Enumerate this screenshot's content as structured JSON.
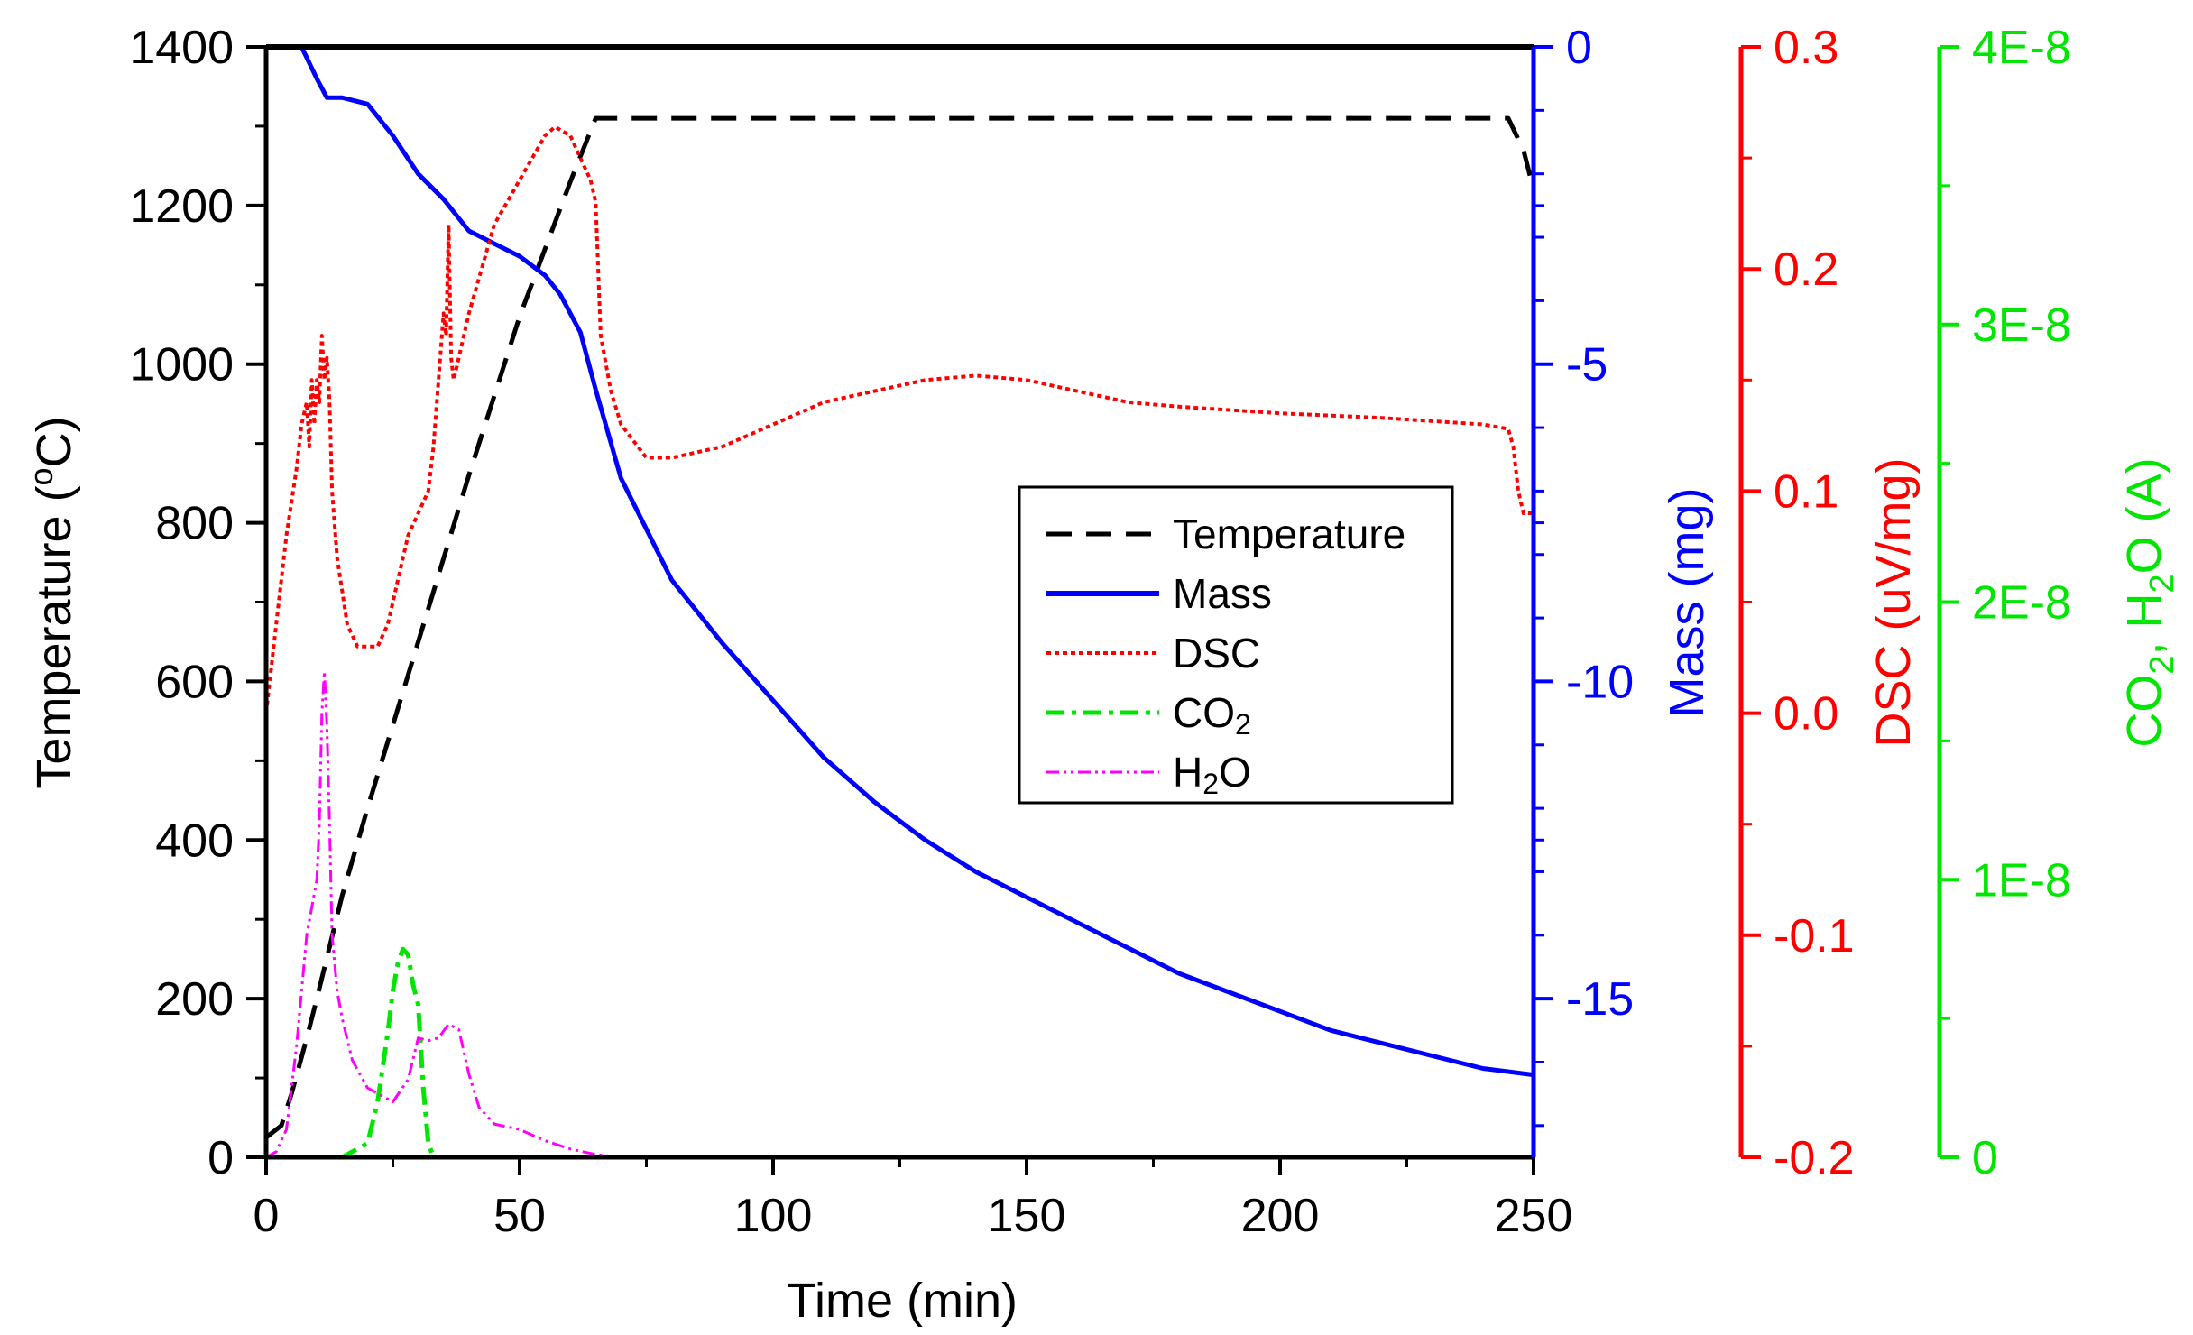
{
  "chart_data": {
    "type": "line",
    "title": "",
    "xlabel": "Time (min)",
    "xlim": [
      0,
      250
    ],
    "x_ticks": [
      "0",
      "50",
      "100",
      "150",
      "200",
      "250"
    ],
    "axes": {
      "temperature": {
        "label": "Temperature (°C)",
        "label_base": "Temperature (",
        "label_sup": "o",
        "label_end": "C)",
        "ylim": [
          0,
          1400
        ],
        "ticks": [
          "0",
          "200",
          "400",
          "600",
          "800",
          "1000",
          "1200",
          "1400"
        ],
        "color": "#000000"
      },
      "mass": {
        "label": "Mass (mg)",
        "ylim": [
          -17.5,
          0
        ],
        "ticks": [
          "0",
          "-5",
          "-10",
          "-15"
        ],
        "color": "#0000ff"
      },
      "dsc": {
        "label": "DSC (uV/mg)",
        "ylim": [
          -0.2,
          0.3
        ],
        "ticks": [
          "-0.2",
          "-0.1",
          "0.0",
          "0.1",
          "0.2",
          "0.3"
        ],
        "color": "#ff0000"
      },
      "gas": {
        "label": "CO2, H2O (A)",
        "label_parts": [
          "CO",
          "2",
          ", H",
          "2",
          "O (A)"
        ],
        "ylim": [
          0,
          4e-08
        ],
        "ticks": [
          "0",
          "1E-8",
          "2E-8",
          "3E-8",
          "4E-8"
        ],
        "color": "#00e600"
      }
    },
    "legend": {
      "position": "center-right",
      "entries": [
        {
          "label": "Temperature"
        },
        {
          "label": "Mass"
        },
        {
          "label": "DSC"
        },
        {
          "label_base": "CO",
          "label_sub": "2"
        },
        {
          "label_base": "H",
          "label_sub": "2",
          "label_end": "O"
        }
      ]
    },
    "series": [
      {
        "name": "Temperature",
        "axis": "temperature",
        "color": "#000000",
        "style": "dashed",
        "x": [
          0,
          3,
          5,
          8,
          10,
          15,
          20,
          30,
          40,
          50,
          60,
          65,
          70,
          100,
          150,
          200,
          240,
          245,
          248,
          250
        ],
        "y": [
          25,
          40,
          80,
          150,
          200,
          330,
          440,
          650,
          860,
          1060,
          1230,
          1310,
          1310,
          1310,
          1310,
          1310,
          1310,
          1310,
          1270,
          1220
        ]
      },
      {
        "name": "Mass",
        "axis": "mass",
        "color": "#0000ff",
        "style": "solid",
        "x": [
          7,
          10,
          12,
          15,
          20,
          25,
          30,
          35,
          40,
          45,
          50,
          55,
          58,
          62,
          65,
          70,
          80,
          90,
          100,
          110,
          120,
          130,
          140,
          150,
          160,
          170,
          180,
          190,
          200,
          210,
          220,
          230,
          240,
          250
        ],
        "y": [
          0,
          -0.5,
          -0.8,
          -0.8,
          -0.9,
          -1.4,
          -2.0,
          -2.4,
          -2.9,
          -3.1,
          -3.3,
          -3.6,
          -3.9,
          -4.5,
          -5.4,
          -6.8,
          -8.4,
          -9.4,
          -10.3,
          -11.2,
          -11.9,
          -12.5,
          -13.0,
          -13.4,
          -13.8,
          -14.2,
          -14.6,
          -14.9,
          -15.2,
          -15.5,
          -15.7,
          -15.9,
          -16.1,
          -16.2
        ]
      },
      {
        "name": "DSC",
        "axis": "dsc",
        "color": "#ff0000",
        "style": "dotted",
        "x": [
          0,
          2,
          4,
          6,
          7,
          8,
          8.5,
          9,
          9.5,
          10,
          10.5,
          11,
          11.5,
          12,
          12.5,
          13,
          14,
          16,
          18,
          20,
          22,
          24,
          26,
          28,
          30,
          32,
          33,
          34,
          35,
          35.5,
          36,
          36.5,
          37,
          38,
          40,
          45,
          50,
          55,
          57,
          60,
          62,
          64,
          65,
          66,
          68,
          70,
          75,
          80,
          90,
          100,
          110,
          120,
          130,
          140,
          150,
          160,
          170,
          180,
          200,
          220,
          240,
          245,
          246,
          247,
          248,
          250
        ],
        "y": [
          0.0,
          0.04,
          0.08,
          0.11,
          0.13,
          0.14,
          0.12,
          0.15,
          0.13,
          0.15,
          0.14,
          0.17,
          0.15,
          0.16,
          0.14,
          0.1,
          0.07,
          0.04,
          0.03,
          0.03,
          0.03,
          0.04,
          0.06,
          0.08,
          0.09,
          0.1,
          0.12,
          0.15,
          0.18,
          0.17,
          0.22,
          0.16,
          0.15,
          0.16,
          0.18,
          0.22,
          0.24,
          0.26,
          0.264,
          0.26,
          0.25,
          0.24,
          0.23,
          0.17,
          0.145,
          0.13,
          0.115,
          0.115,
          0.12,
          0.13,
          0.14,
          0.145,
          0.15,
          0.152,
          0.15,
          0.145,
          0.14,
          0.138,
          0.135,
          0.133,
          0.13,
          0.128,
          0.12,
          0.1,
          0.09,
          0.09
        ]
      },
      {
        "name": "CO2",
        "axis": "gas",
        "color": "#00e600",
        "style": "dashdot",
        "x": [
          0,
          10,
          15,
          20,
          22,
          24,
          25,
          26,
          27,
          28,
          29,
          30,
          31,
          32,
          33,
          35,
          40,
          50,
          100,
          150,
          200,
          250
        ],
        "y": [
          0,
          0,
          0,
          5e-10,
          2e-09,
          4.5e-09,
          6e-09,
          7e-09,
          7.5e-09,
          7.3e-09,
          6.2e-09,
          5.5e-09,
          2.5e-09,
          5e-10,
          0,
          0,
          0,
          0,
          0,
          0,
          0,
          0
        ]
      },
      {
        "name": "H2O",
        "axis": "gas",
        "color": "#ff00ff",
        "style": "dashdotdot",
        "x": [
          0,
          2,
          4,
          6,
          8,
          9,
          10,
          10.5,
          11,
          11.5,
          12,
          12.5,
          13,
          14,
          15,
          17,
          20,
          25,
          28,
          30,
          32,
          34,
          36,
          38,
          40,
          42,
          45,
          50,
          55,
          60,
          65,
          70,
          80,
          100,
          150,
          200,
          250
        ],
        "y": [
          0,
          2e-10,
          1e-09,
          4e-09,
          8e-09,
          9e-09,
          1e-08,
          1.2e-08,
          1.6e-08,
          1.75e-08,
          1.55e-08,
          1.2e-08,
          8e-09,
          6e-09,
          5e-09,
          3.5e-09,
          2.5e-09,
          2e-09,
          2.8e-09,
          4.3e-09,
          4.2e-09,
          4.3e-09,
          4.8e-09,
          4.6e-09,
          3e-09,
          1.8e-09,
          1.2e-09,
          1e-09,
          6e-10,
          3e-10,
          1e-10,
          0,
          0,
          0,
          0,
          0,
          0
        ]
      }
    ]
  }
}
